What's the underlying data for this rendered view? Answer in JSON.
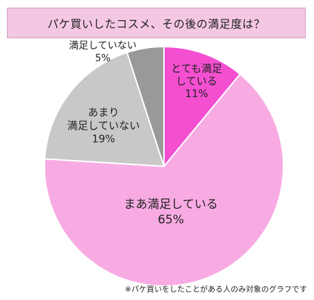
{
  "chart_data": {
    "type": "pie",
    "title": "パケ買いしたコスメ、その後の満足度は？",
    "slices": [
      {
        "lines": [
          "とても満足",
          "している",
          "11%"
        ],
        "value": 11,
        "color": "#f44fd1"
      },
      {
        "lines": [
          "まあ満足している",
          "65%"
        ],
        "value": 65,
        "color": "#f8abe3"
      },
      {
        "lines": [
          "あまり",
          "満足していない",
          "19%"
        ],
        "value": 19,
        "color": "#c8c8c8"
      },
      {
        "lines": [
          "満足していない",
          "5%"
        ],
        "value": 5,
        "color": "#999999"
      }
    ],
    "start_angle_deg": 0,
    "direction": "clockwise",
    "footnote": "※パケ買いをしたことがある人のみ対象のグラフです"
  }
}
